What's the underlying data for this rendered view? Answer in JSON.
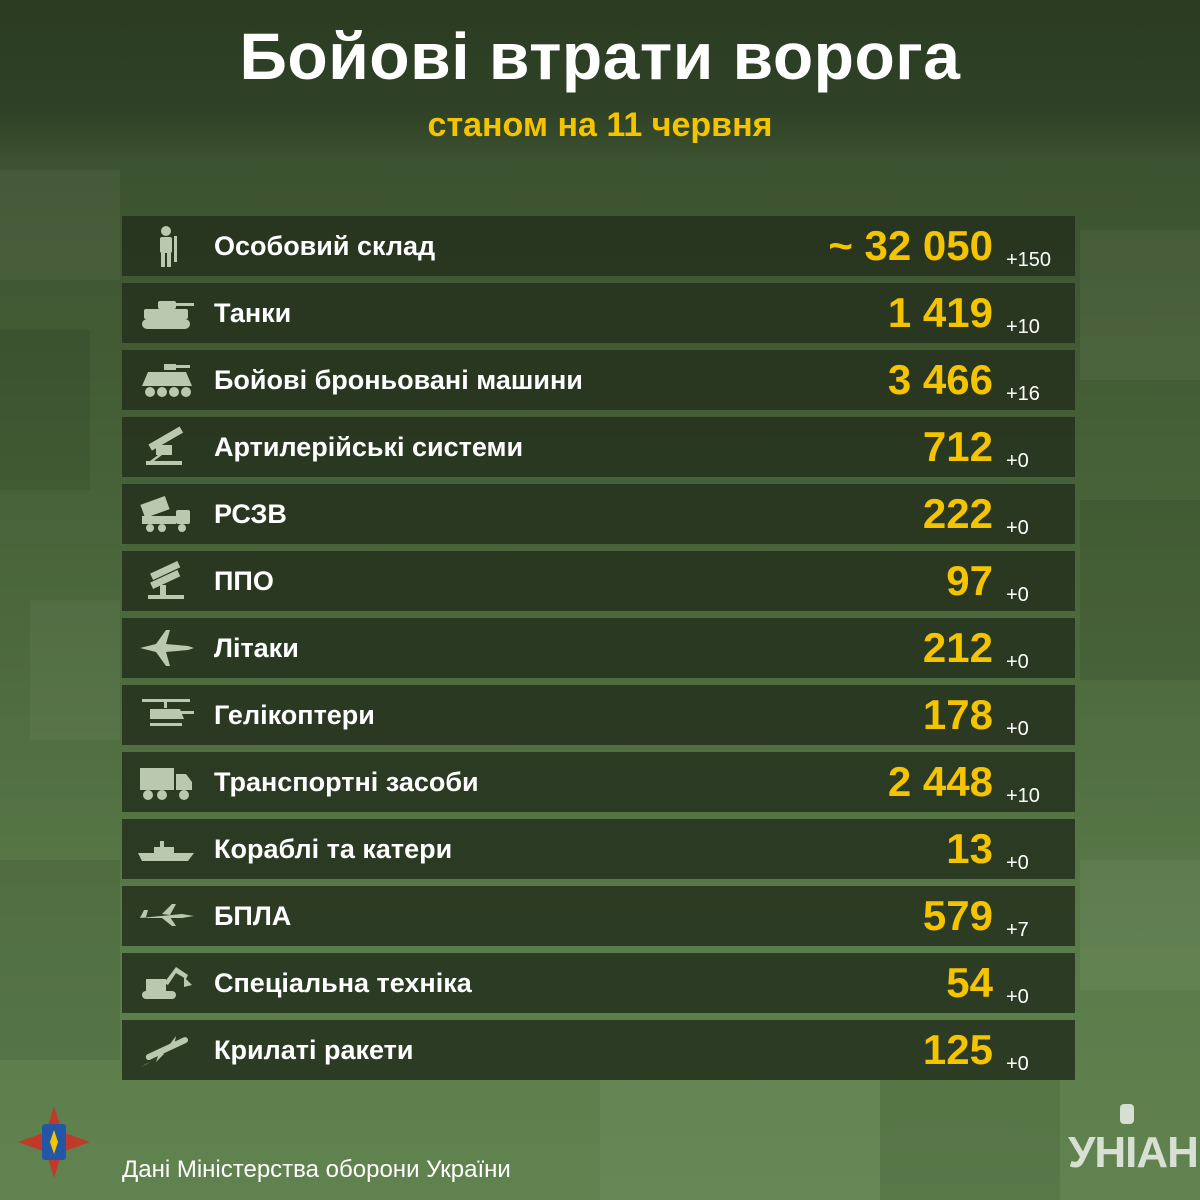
{
  "header": {
    "title": "Бойові втрати ворога",
    "subtitle": "станом на 11 червня"
  },
  "colors": {
    "accent": "#f5c400",
    "row_bg": "#25321e",
    "text": "#ffffff"
  },
  "rows": [
    {
      "icon": "soldier-icon",
      "label": "Особовий склад",
      "value": "~ 32 050",
      "delta": "+150"
    },
    {
      "icon": "tank-icon",
      "label": "Танки",
      "value": "1 419",
      "delta": "+10"
    },
    {
      "icon": "armored-vehicle-icon",
      "label": "Бойові броньовані машини",
      "value": "3 466",
      "delta": "+16"
    },
    {
      "icon": "artillery-icon",
      "label": "Артилерійські системи",
      "value": "712",
      "delta": "+0"
    },
    {
      "icon": "mlrs-icon",
      "label": "РСЗВ",
      "value": "222",
      "delta": "+0"
    },
    {
      "icon": "air-defense-icon",
      "label": "ППО",
      "value": "97",
      "delta": "+0"
    },
    {
      "icon": "jet-icon",
      "label": "Літаки",
      "value": "212",
      "delta": "+0"
    },
    {
      "icon": "helicopter-icon",
      "label": "Гелікоптери",
      "value": "178",
      "delta": "+0"
    },
    {
      "icon": "truck-icon",
      "label": "Транспортні засоби",
      "value": "2 448",
      "delta": "+10"
    },
    {
      "icon": "ship-icon",
      "label": "Кораблі та катери",
      "value": "13",
      "delta": "+0"
    },
    {
      "icon": "drone-icon",
      "label": "БПЛА",
      "value": "579",
      "delta": "+7"
    },
    {
      "icon": "excavator-icon",
      "label": "Спеціальна техніка",
      "value": "54",
      "delta": "+0"
    },
    {
      "icon": "cruise-missile-icon",
      "label": "Крилаті ракети",
      "value": "125",
      "delta": "+0"
    }
  ],
  "footer": {
    "source": "Дані Міністерства оборони України",
    "logo": "УНІАН",
    "emblem_icon": "armed-forces-emblem-icon"
  }
}
